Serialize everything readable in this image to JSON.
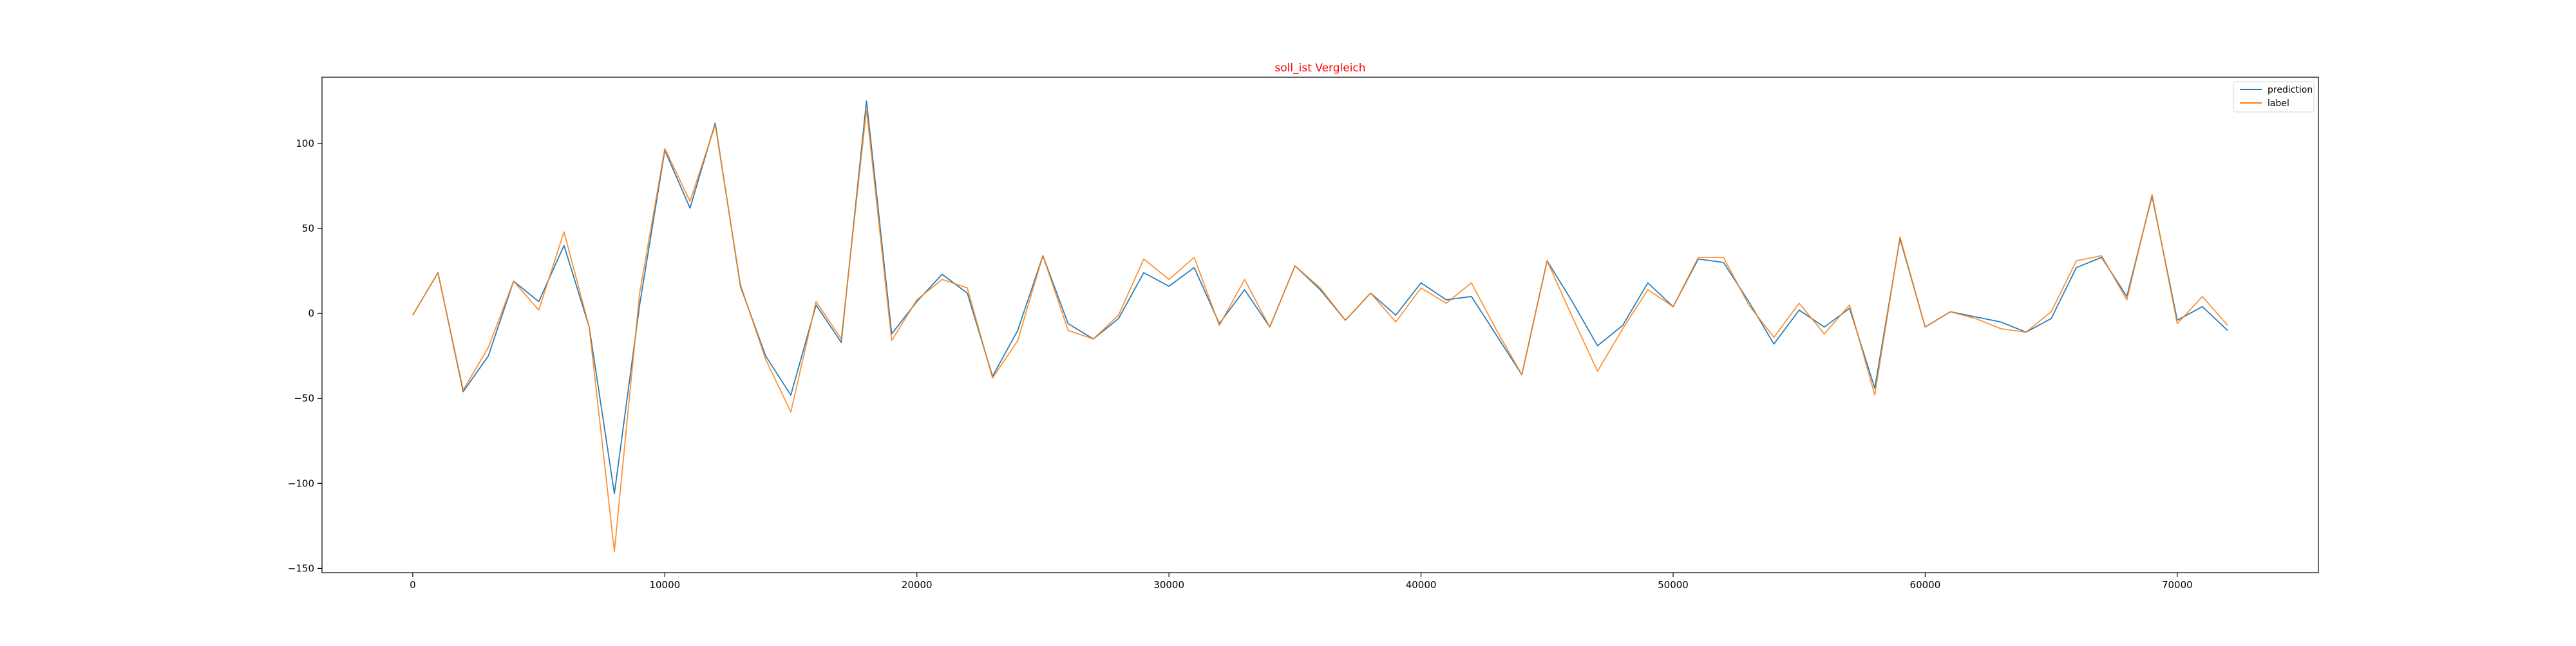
{
  "chart_data": {
    "type": "line",
    "title": "soll_ist Vergleich",
    "title_color": "#ff0000",
    "xlabel": "",
    "ylabel": "",
    "xlim": [
      -3600,
      75600
    ],
    "ylim": [
      -152.5,
      139
    ],
    "x_ticks": [
      0,
      10000,
      20000,
      30000,
      40000,
      50000,
      60000,
      70000
    ],
    "x_tick_labels": [
      "0",
      "10000",
      "20000",
      "30000",
      "40000",
      "50000",
      "60000",
      "70000"
    ],
    "y_ticks": [
      -150,
      -100,
      -50,
      0,
      50,
      100
    ],
    "y_tick_labels": [
      "−150",
      "−100",
      "−50",
      "0",
      "50",
      "100"
    ],
    "grid": false,
    "legend_position": "top-right",
    "x": [
      0,
      1000,
      2000,
      3000,
      4000,
      5000,
      6000,
      7000,
      8000,
      9000,
      10000,
      11000,
      12000,
      13000,
      14000,
      15000,
      16000,
      17000,
      18000,
      19000,
      20000,
      21000,
      22000,
      23000,
      24000,
      25000,
      26000,
      27000,
      28000,
      29000,
      30000,
      31000,
      32000,
      33000,
      34000,
      35000,
      36000,
      37000,
      38000,
      39000,
      40000,
      41000,
      42000,
      43000,
      44000,
      45000,
      46000,
      47000,
      48000,
      49000,
      50000,
      51000,
      52000,
      53000,
      54000,
      55000,
      56000,
      57000,
      58000,
      59000,
      60000,
      61000,
      62000,
      63000,
      64000,
      65000,
      66000,
      67000,
      68000,
      69000,
      70000,
      71000,
      72000
    ],
    "series": [
      {
        "name": "prediction",
        "color": "#1f77b4",
        "values": [
          -1,
          24,
          -46,
          -25,
          19,
          7,
          40,
          -8,
          -106,
          5,
          96,
          62,
          112,
          16,
          -25,
          -48,
          5,
          -17,
          125,
          -12,
          7,
          23,
          12,
          -37,
          -10,
          34,
          -6,
          -15,
          -3,
          24,
          16,
          27,
          -6,
          14,
          -8,
          28,
          14,
          -4,
          12,
          -1,
          18,
          8,
          10,
          -13,
          -36,
          31,
          7,
          -19,
          -7,
          18,
          4,
          32,
          30,
          7,
          -18,
          2,
          -8,
          3,
          -44,
          44,
          -8,
          1,
          -2,
          -5,
          -11,
          -3,
          27,
          33,
          10,
          69,
          -4,
          4,
          -10
        ]
      },
      {
        "name": "label",
        "color": "#ff7f0e",
        "values": [
          -1,
          24,
          -45,
          -20,
          19,
          2,
          48,
          -8,
          -140,
          12,
          97,
          66,
          111,
          17,
          -27,
          -58,
          7,
          -15,
          120,
          -16,
          8,
          20,
          15,
          -38,
          -16,
          34,
          -10,
          -15,
          -1,
          32,
          20,
          33,
          -7,
          20,
          -8,
          28,
          15,
          -4,
          12,
          -5,
          15,
          6,
          18,
          -10,
          -36,
          31,
          -2,
          -34,
          -9,
          14,
          4,
          33,
          33,
          5,
          -14,
          6,
          -12,
          5,
          -48,
          45,
          -8,
          1,
          -3,
          -9,
          -11,
          1,
          31,
          34,
          8,
          70,
          -6,
          10,
          -7
        ]
      }
    ]
  }
}
